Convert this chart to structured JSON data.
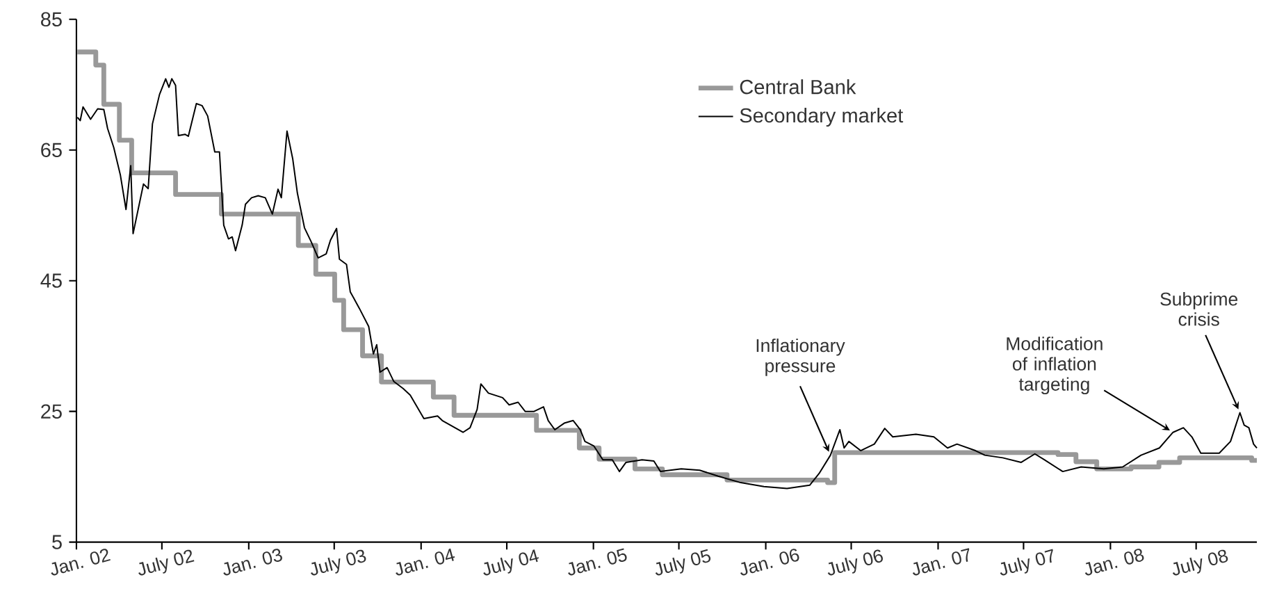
{
  "chart_data": {
    "type": "line",
    "xlim": [
      "2002-01-01",
      "2008-11-07"
    ],
    "ylim": [
      5,
      85
    ],
    "xticks": [
      {
        "value": "2002-01-01",
        "label": "Jan. 02"
      },
      {
        "value": "2002-07-01",
        "label": "July 02"
      },
      {
        "value": "2003-01-01",
        "label": "Jan. 03"
      },
      {
        "value": "2003-07-01",
        "label": "July 03"
      },
      {
        "value": "2004-01-01",
        "label": "Jan. 04"
      },
      {
        "value": "2004-07-01",
        "label": "July 04"
      },
      {
        "value": "2005-01-01",
        "label": "Jan. 05"
      },
      {
        "value": "2005-07-01",
        "label": "July 05"
      },
      {
        "value": "2006-01-01",
        "label": "Jan. 06"
      },
      {
        "value": "2006-07-01",
        "label": "July 06"
      },
      {
        "value": "2007-01-01",
        "label": "Jan. 07"
      },
      {
        "value": "2007-07-01",
        "label": "July 07"
      },
      {
        "value": "2008-01-01",
        "label": "Jan. 08"
      },
      {
        "value": "2008-07-01",
        "label": "July 08"
      }
    ],
    "yticks": [
      5,
      25,
      45,
      65,
      85
    ],
    "legend": "top",
    "series": [
      {
        "name": "Central Bank",
        "type": "step",
        "color": "#999999",
        "x": [
          "2002-01-03",
          "2002-02-11",
          "2002-02-28",
          "2002-04-02",
          "2002-04-28",
          "2002-07-30",
          "2002-11-04",
          "2003-04-16",
          "2003-05-23",
          "2003-07-02",
          "2003-07-21",
          "2003-08-30",
          "2003-10-09",
          "2004-01-27",
          "2004-03-11",
          "2004-09-02",
          "2004-12-02",
          "2005-01-13",
          "2005-03-30",
          "2005-05-27",
          "2005-10-11",
          "2006-05-12",
          "2006-05-27",
          "2007-09-12",
          "2007-10-20",
          "2007-12-03",
          "2008-02-14",
          "2008-04-13",
          "2008-05-27",
          "2008-10-27",
          "2008-11-07"
        ],
        "values": [
          80,
          78,
          72,
          66.5,
          61.5,
          58.2,
          55.2,
          50.4,
          46,
          42,
          37.5,
          33.5,
          29.5,
          27.2,
          24.4,
          22.1,
          19.4,
          17.7,
          16.2,
          15.3,
          14.5,
          14.1,
          18.7,
          18.4,
          17.3,
          16.2,
          16.5,
          17.2,
          17.9,
          17.5,
          17.5
        ]
      },
      {
        "name": "Secondary market",
        "color": "#000000",
        "x": [
          "2002-01-03",
          "2002-01-09",
          "2002-01-15",
          "2002-01-31",
          "2002-02-15",
          "2002-02-28",
          "2002-03-08",
          "2002-03-21",
          "2002-04-04",
          "2002-04-16",
          "2002-04-26",
          "2002-05-01",
          "2002-05-23",
          "2002-06-02",
          "2002-06-11",
          "2002-06-26",
          "2002-07-09",
          "2002-07-16",
          "2002-07-22",
          "2002-07-30",
          "2002-08-05",
          "2002-08-19",
          "2002-08-26",
          "2002-09-12",
          "2002-09-24",
          "2002-10-06",
          "2002-10-21",
          "2002-10-31",
          "2002-11-09",
          "2002-11-19",
          "2002-11-27",
          "2002-12-04",
          "2002-12-18",
          "2002-12-25",
          "2003-01-07",
          "2003-01-21",
          "2003-02-05",
          "2003-02-20",
          "2003-03-04",
          "2003-03-11",
          "2003-03-23",
          "2003-04-04",
          "2003-04-14",
          "2003-04-29",
          "2003-05-13",
          "2003-05-28",
          "2003-06-14",
          "2003-06-23",
          "2003-07-06",
          "2003-07-12",
          "2003-07-27",
          "2003-08-04",
          "2003-08-23",
          "2003-09-12",
          "2003-09-22",
          "2003-09-29",
          "2003-10-06",
          "2003-10-21",
          "2003-11-04",
          "2003-11-24",
          "2003-12-09",
          "2004-01-07",
          "2004-02-05",
          "2004-02-15",
          "2004-03-30",
          "2004-04-14",
          "2004-04-29",
          "2004-05-07",
          "2004-05-23",
          "2004-06-22",
          "2004-07-06",
          "2004-07-25",
          "2004-08-09",
          "2004-08-28",
          "2004-09-17",
          "2004-09-27",
          "2004-10-11",
          "2004-10-31",
          "2004-11-19",
          "2004-12-04",
          "2004-12-14",
          "2005-01-02",
          "2005-01-21",
          "2005-02-10",
          "2005-02-25",
          "2005-03-11",
          "2005-04-14",
          "2005-05-09",
          "2005-05-23",
          "2005-07-06",
          "2005-08-14",
          "2005-09-22",
          "2005-11-09",
          "2005-12-28",
          "2006-02-15",
          "2006-04-04",
          "2006-04-24",
          "2006-05-18",
          "2006-06-07",
          "2006-06-16",
          "2006-06-26",
          "2006-07-21",
          "2006-08-19",
          "2006-09-10",
          "2006-09-27",
          "2006-11-15",
          "2006-12-23",
          "2007-01-21",
          "2007-02-10",
          "2007-03-21",
          "2007-04-10",
          "2007-05-18",
          "2007-06-26",
          "2007-07-25",
          "2007-08-14",
          "2007-09-22",
          "2007-10-31",
          "2007-12-18",
          "2008-01-27",
          "2008-03-06",
          "2008-04-14",
          "2008-05-13",
          "2008-06-04",
          "2008-06-22",
          "2008-07-11",
          "2008-08-19",
          "2008-09-12",
          "2008-10-02",
          "2008-10-11",
          "2008-10-21",
          "2008-10-31",
          "2008-11-07"
        ],
        "values": [
          70.0,
          69.5,
          71.6,
          69.7,
          71.3,
          71.2,
          68.3,
          65.4,
          61.2,
          55.9,
          62.6,
          52.2,
          59.8,
          59.1,
          69.0,
          73.5,
          75.9,
          74.6,
          75.9,
          74.9,
          67.2,
          67.4,
          67.1,
          72.1,
          71.8,
          70.2,
          64.7,
          64.7,
          53.5,
          51.4,
          51.7,
          49.6,
          53.5,
          56.7,
          57.7,
          58.0,
          57.7,
          55.2,
          59.0,
          57.7,
          67.9,
          63.7,
          58.4,
          53.1,
          51.0,
          48.5,
          49.1,
          51.2,
          53.0,
          48.3,
          47.5,
          43.3,
          40.8,
          38.0,
          33.8,
          35.2,
          31.0,
          31.7,
          29.6,
          28.5,
          27.5,
          23.9,
          24.3,
          23.6,
          21.8,
          22.5,
          25.3,
          29.2,
          27.8,
          27.1,
          26.0,
          26.4,
          25.0,
          25.0,
          25.7,
          23.6,
          22.2,
          23.2,
          23.6,
          22.2,
          20.4,
          19.7,
          17.6,
          17.6,
          15.8,
          17.2,
          17.6,
          17.4,
          15.8,
          16.2,
          16.0,
          15.1,
          14.1,
          13.5,
          13.2,
          13.7,
          15.5,
          18.3,
          22.2,
          19.4,
          20.4,
          19.0,
          20.0,
          22.4,
          21.1,
          21.5,
          21.1,
          19.4,
          20.0,
          19.0,
          18.3,
          17.9,
          17.2,
          18.5,
          17.6,
          15.8,
          16.5,
          16.2,
          16.5,
          18.3,
          19.4,
          21.8,
          22.5,
          21.1,
          18.6,
          18.6,
          20.4,
          24.8,
          22.9,
          22.5,
          20.0,
          19.4
        ]
      }
    ],
    "annotations": [
      {
        "text": "Inflationary pressure",
        "x": "2006-05-18",
        "y": 18.3
      },
      {
        "text": "Modification of inflation targeting",
        "x": "2008-05-13",
        "y": 21.8
      },
      {
        "text": "Subprime crisis",
        "x": "2008-10-02",
        "y": 24.8
      }
    ]
  }
}
